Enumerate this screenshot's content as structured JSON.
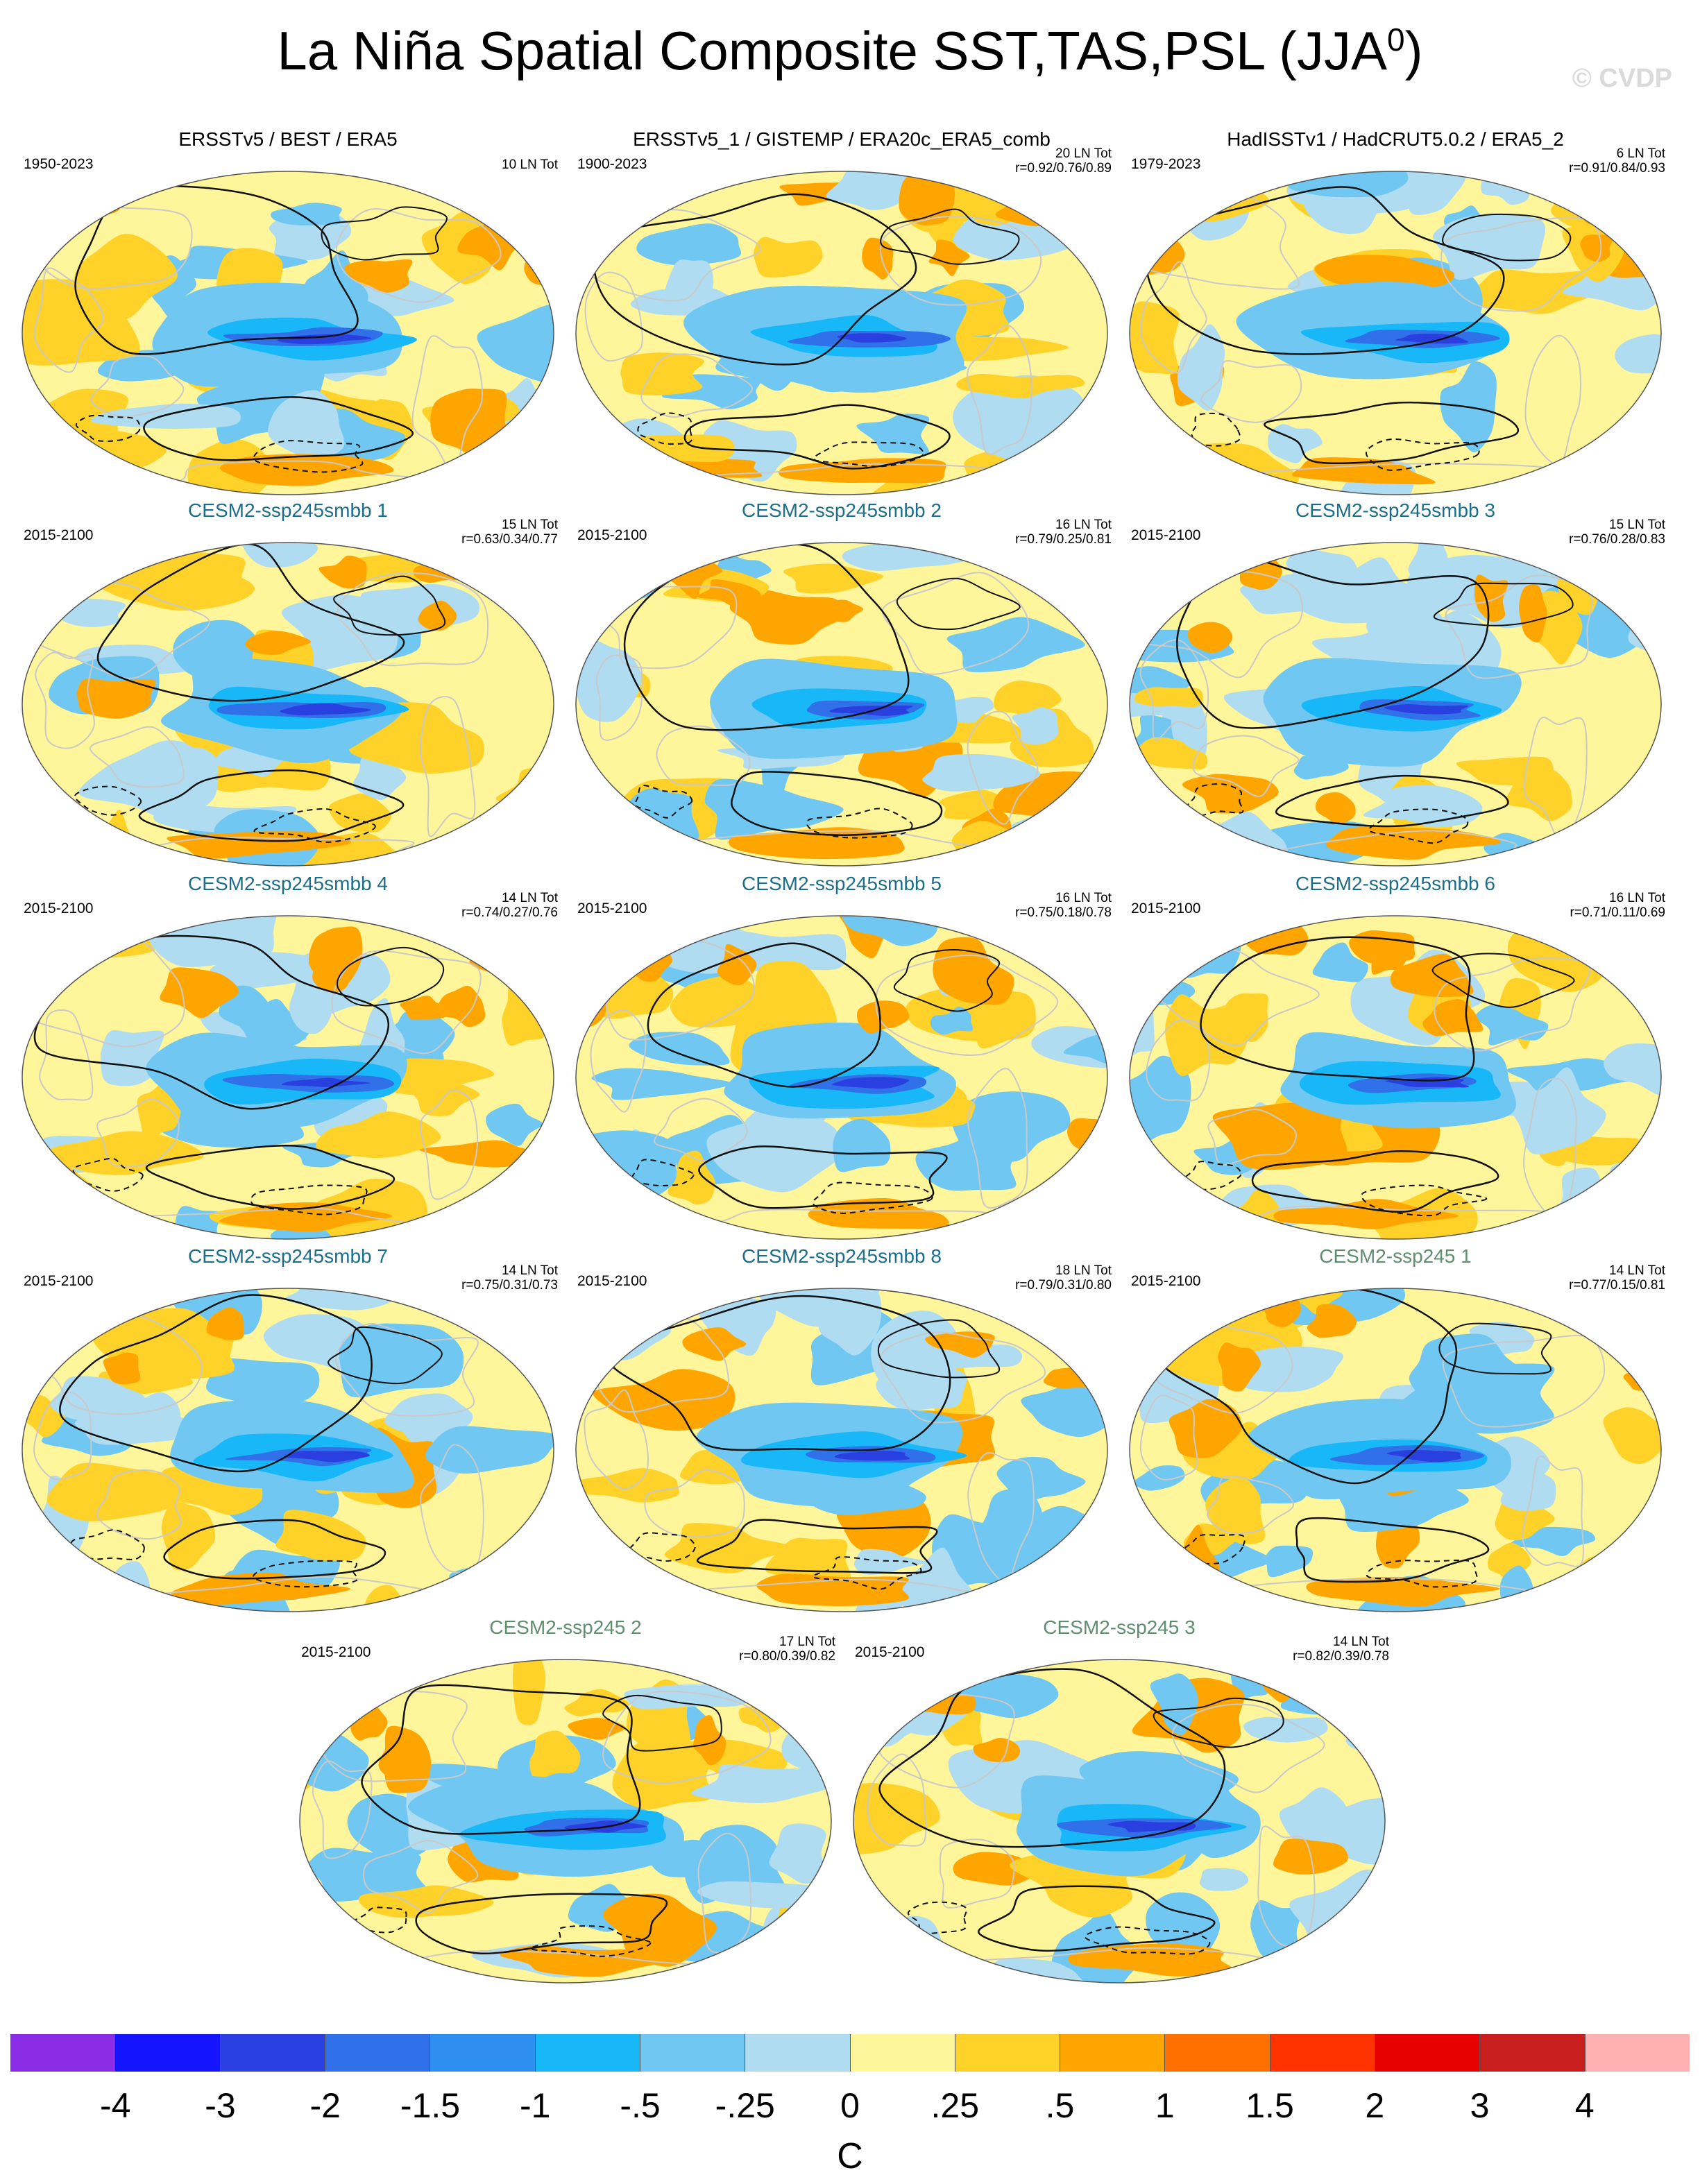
{
  "title": "La Niña Spatial Composite SST,TAS,PSL (JJA",
  "title_superscript": "0",
  "title_close": ")",
  "watermark": "© CVDP",
  "colors": {
    "observed_title": "#000000",
    "smbb_title": "#1b6e8a",
    "ssp245_title": "#5f8e6e"
  },
  "panels": [
    {
      "title": "ERSSTv5 / BEST / ERA5",
      "period": "1950-2023",
      "stats": [
        "10 LN Tot"
      ],
      "group": "obs",
      "seed": 11
    },
    {
      "title": "ERSSTv5_1 / GISTEMP / ERA20c_ERA5_comb",
      "period": "1900-2023",
      "stats": [
        "20 LN Tot",
        "r=0.92/0.76/0.89"
      ],
      "group": "obs",
      "seed": 23
    },
    {
      "title": "HadISSTv1 / HadCRUT5.0.2 / ERA5_2",
      "period": "1979-2023",
      "stats": [
        "6 LN Tot",
        "r=0.91/0.84/0.93"
      ],
      "group": "obs",
      "seed": 37
    },
    {
      "title": "CESM2-ssp245smbb 1",
      "period": "2015-2100",
      "stats": [
        "15 LN Tot",
        "r=0.63/0.34/0.77"
      ],
      "group": "smbb",
      "seed": 41
    },
    {
      "title": "CESM2-ssp245smbb 2",
      "period": "2015-2100",
      "stats": [
        "16 LN Tot",
        "r=0.79/0.25/0.81"
      ],
      "group": "smbb",
      "seed": 53
    },
    {
      "title": "CESM2-ssp245smbb 3",
      "period": "2015-2100",
      "stats": [
        "15 LN Tot",
        "r=0.76/0.28/0.83"
      ],
      "group": "smbb",
      "seed": 67
    },
    {
      "title": "CESM2-ssp245smbb 4",
      "period": "2015-2100",
      "stats": [
        "14 LN Tot",
        "r=0.74/0.27/0.76"
      ],
      "group": "smbb",
      "seed": 71
    },
    {
      "title": "CESM2-ssp245smbb 5",
      "period": "2015-2100",
      "stats": [
        "16 LN Tot",
        "r=0.75/0.18/0.78"
      ],
      "group": "smbb",
      "seed": 83
    },
    {
      "title": "CESM2-ssp245smbb 6",
      "period": "2015-2100",
      "stats": [
        "16 LN Tot",
        "r=0.71/0.11/0.69"
      ],
      "group": "smbb",
      "seed": 97
    },
    {
      "title": "CESM2-ssp245smbb 7",
      "period": "2015-2100",
      "stats": [
        "14 LN Tot",
        "r=0.75/0.31/0.73"
      ],
      "group": "smbb",
      "seed": 101
    },
    {
      "title": "CESM2-ssp245smbb 8",
      "period": "2015-2100",
      "stats": [
        "18 LN Tot",
        "r=0.79/0.31/0.80"
      ],
      "group": "smbb",
      "seed": 113
    },
    {
      "title": "CESM2-ssp245 1",
      "period": "2015-2100",
      "stats": [
        "14 LN Tot",
        "r=0.77/0.15/0.81"
      ],
      "group": "ssp245",
      "seed": 127
    },
    {
      "title": "CESM2-ssp245 2",
      "period": "2015-2100",
      "stats": [
        "17 LN Tot",
        "r=0.80/0.39/0.82"
      ],
      "group": "ssp245",
      "seed": 131
    },
    {
      "title": "CESM2-ssp245 3",
      "period": "2015-2100",
      "stats": [
        "14 LN Tot",
        "r=0.82/0.39/0.78"
      ],
      "group": "ssp245",
      "seed": 149
    }
  ],
  "colorbar": {
    "colors": [
      "#8a2be6",
      "#1414ff",
      "#2a3fe0",
      "#3070e8",
      "#2f8ff0",
      "#18b8f8",
      "#70c8f2",
      "#b0dcf2",
      "#fff59a",
      "#ffd22a",
      "#ffa500",
      "#ff7000",
      "#ff3300",
      "#e60000",
      "#c81e1e",
      "#ffb0b0"
    ],
    "labels": [
      "-4",
      "-3",
      "-2",
      "-1.5",
      "-1",
      "-.5",
      "-.25",
      "0",
      ".25",
      ".5",
      "1",
      "1.5",
      "2",
      "3",
      "4"
    ],
    "unit": "C"
  }
}
